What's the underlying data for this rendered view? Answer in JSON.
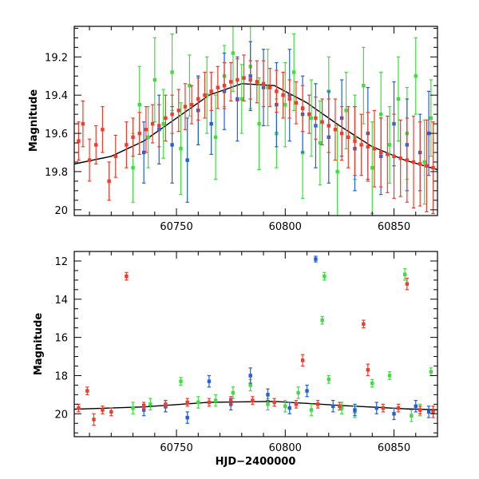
{
  "chart_data": [
    {
      "type": "scatter",
      "panel": "top",
      "title": "",
      "xlabel": "",
      "ylabel": "Magnitude",
      "xlim": [
        60703,
        60870
      ],
      "ylim": [
        20.03,
        19.04
      ],
      "y_inverted": true,
      "xticks": [
        60750,
        60800,
        60850
      ],
      "yticks": [
        19.2,
        19.4,
        19.6,
        19.8,
        20
      ],
      "ytick_labels": [
        "19.2",
        "19.4",
        "19.6",
        "19.8",
        "20"
      ],
      "grid": false,
      "legend": "none",
      "trend_curve": {
        "color": "#000000",
        "x": [
          60703,
          60720,
          60735,
          60750,
          60765,
          60780,
          60795,
          60810,
          60825,
          60840,
          60855,
          60870
        ],
        "y": [
          19.76,
          19.72,
          19.64,
          19.52,
          19.4,
          19.34,
          19.35,
          19.44,
          19.56,
          19.67,
          19.74,
          19.79
        ]
      },
      "series": [
        {
          "color": "#3dde3d",
          "x": [
            60730,
            60733,
            60737,
            60740,
            60744,
            60748,
            60752,
            60756,
            60760,
            60764,
            60768,
            60772,
            60776,
            60780,
            60784,
            60788,
            60792,
            60796,
            60800,
            60804,
            60808,
            60812,
            60816,
            60820,
            60824,
            60828,
            60832,
            60836,
            60840,
            60844,
            60848,
            60852,
            60856,
            60860,
            60864,
            60867
          ],
          "y": [
            19.78,
            19.45,
            19.62,
            19.32,
            19.55,
            19.28,
            19.68,
            19.35,
            19.48,
            19.4,
            19.62,
            19.3,
            19.18,
            19.42,
            19.25,
            19.55,
            19.36,
            19.6,
            19.45,
            19.28,
            19.7,
            19.52,
            19.65,
            19.38,
            19.8,
            19.48,
            19.62,
            19.35,
            19.78,
            19.5,
            19.66,
            19.42,
            19.6,
            19.3,
            19.75,
            19.52
          ],
          "err": [
            0.18,
            0.2,
            0.16,
            0.22,
            0.18,
            0.2,
            0.24,
            0.16,
            0.18,
            0.2,
            0.22,
            0.16,
            0.2,
            0.18,
            0.22,
            0.24,
            0.2,
            0.18,
            0.22,
            0.2,
            0.24,
            0.2,
            0.22,
            0.18,
            0.24,
            0.2,
            0.22,
            0.2,
            0.24,
            0.22,
            0.2,
            0.22,
            0.24,
            0.2,
            0.22,
            0.2
          ]
        },
        {
          "color": "#1f5fe0",
          "x": [
            60735,
            60742,
            60748,
            60755,
            60760,
            60766,
            60772,
            60778,
            60784,
            60790,
            60796,
            60802,
            60808,
            60814,
            60820,
            60826,
            60832,
            60838,
            60844,
            60850,
            60856,
            60862,
            60866
          ],
          "y": [
            19.7,
            19.58,
            19.66,
            19.74,
            19.48,
            19.55,
            19.38,
            19.42,
            19.3,
            19.36,
            19.45,
            19.4,
            19.5,
            19.56,
            19.62,
            19.52,
            19.68,
            19.6,
            19.72,
            19.55,
            19.66,
            19.7,
            19.6
          ],
          "err": [
            0.16,
            0.18,
            0.2,
            0.22,
            0.18,
            0.16,
            0.2,
            0.22,
            0.18,
            0.2,
            0.22,
            0.24,
            0.2,
            0.22,
            0.24,
            0.2,
            0.22,
            0.24,
            0.2,
            0.22,
            0.24,
            0.2,
            0.22
          ]
        },
        {
          "color": "#f23b2a",
          "x": [
            60705,
            60707,
            60710,
            60713,
            60716,
            60719,
            60722,
            60727,
            60730,
            60733,
            60736,
            60739,
            60742,
            60745,
            60748,
            60751,
            60754,
            60757,
            60760,
            60763,
            60766,
            60769,
            60772,
            60775,
            60778,
            60781,
            60784,
            60787,
            60790,
            60793,
            60796,
            60799,
            60802,
            60805,
            60808,
            60811,
            60814,
            60817,
            60820,
            60823,
            60826,
            60829,
            60832,
            60835,
            60838,
            60841,
            60844,
            60847,
            60850,
            60853,
            60856,
            60859,
            60862,
            60865,
            60868
          ],
          "y": [
            19.64,
            19.55,
            19.74,
            19.66,
            19.58,
            19.85,
            19.72,
            19.66,
            19.62,
            19.6,
            19.58,
            19.55,
            19.56,
            19.52,
            19.5,
            19.48,
            19.46,
            19.45,
            19.42,
            19.4,
            19.38,
            19.36,
            19.35,
            19.33,
            19.32,
            19.31,
            19.32,
            19.33,
            19.34,
            19.36,
            19.38,
            19.4,
            19.42,
            19.44,
            19.47,
            19.5,
            19.52,
            19.54,
            19.56,
            19.58,
            19.6,
            19.62,
            19.64,
            19.66,
            19.67,
            19.68,
            19.7,
            19.71,
            19.72,
            19.73,
            19.74,
            19.75,
            19.76,
            19.77,
            19.78
          ],
          "err": [
            0.1,
            0.12,
            0.11,
            0.1,
            0.12,
            0.1,
            0.11,
            0.12,
            0.1,
            0.11,
            0.12,
            0.1,
            0.11,
            0.12,
            0.1,
            0.11,
            0.12,
            0.1,
            0.11,
            0.12,
            0.1,
            0.11,
            0.12,
            0.1,
            0.11,
            0.12,
            0.1,
            0.11,
            0.12,
            0.1,
            0.11,
            0.12,
            0.1,
            0.11,
            0.12,
            0.1,
            0.11,
            0.12,
            0.14,
            0.16,
            0.14,
            0.16,
            0.18,
            0.16,
            0.18,
            0.2,
            0.18,
            0.2,
            0.22,
            0.2,
            0.22,
            0.24,
            0.22,
            0.24,
            0.24
          ]
        }
      ]
    },
    {
      "type": "scatter",
      "panel": "bottom",
      "title": "",
      "xlabel": "HJD−2400000",
      "ylabel": "Magnitude",
      "xlim": [
        60703,
        60870
      ],
      "ylim": [
        21.2,
        11.5
      ],
      "y_inverted": true,
      "xticks": [
        60750,
        60800,
        60850
      ],
      "yticks": [
        12,
        14,
        16,
        18,
        20
      ],
      "ytick_labels": [
        "12",
        "14",
        "16",
        "18",
        "20"
      ],
      "grid": false,
      "legend": "none",
      "trend_curve": {
        "color": "#000000",
        "x": [
          60703,
          60735,
          60765,
          60795,
          60825,
          60855,
          60870
        ],
        "y": [
          19.76,
          19.64,
          19.4,
          19.35,
          19.56,
          19.74,
          19.79
        ]
      },
      "series": [
        {
          "color": "#3dde3d",
          "x": [
            60730,
            60738,
            60745,
            60752,
            60760,
            60768,
            60776,
            60784,
            60792,
            60800,
            60806,
            60812,
            60817,
            60818,
            60820,
            60826,
            60832,
            60840,
            60848,
            60855,
            60858,
            60862,
            60867
          ],
          "y": [
            19.7,
            19.5,
            19.6,
            18.3,
            19.4,
            19.3,
            18.9,
            18.5,
            19.5,
            19.6,
            18.9,
            19.8,
            15.1,
            12.8,
            18.2,
            19.7,
            19.9,
            18.4,
            18.0,
            12.7,
            20.1,
            19.8,
            17.8
          ],
          "err": [
            0.3,
            0.3,
            0.3,
            0.2,
            0.3,
            0.3,
            0.3,
            0.3,
            0.3,
            0.3,
            0.3,
            0.3,
            0.2,
            0.2,
            0.2,
            0.3,
            0.3,
            0.2,
            0.2,
            0.3,
            0.3,
            0.3,
            0.2
          ]
        },
        {
          "color": "#1f5fe0",
          "x": [
            60735,
            60745,
            60755,
            60765,
            60775,
            60784,
            60792,
            60802,
            60810,
            60814,
            60822,
            60832,
            60842,
            60850,
            60860,
            60866
          ],
          "y": [
            19.8,
            19.6,
            20.2,
            18.3,
            19.5,
            18.0,
            19.0,
            19.7,
            18.8,
            11.9,
            19.6,
            19.8,
            19.7,
            20.0,
            19.6,
            19.9
          ],
          "err": [
            0.3,
            0.3,
            0.3,
            0.3,
            0.3,
            0.4,
            0.3,
            0.3,
            0.3,
            0.15,
            0.3,
            0.3,
            0.3,
            0.3,
            0.3,
            0.3
          ]
        },
        {
          "color": "#f23b2a",
          "x": [
            60705,
            60709,
            60712,
            60716,
            60720,
            60727,
            60735,
            60745,
            60755,
            60765,
            60775,
            60785,
            60795,
            60805,
            60808,
            60815,
            60825,
            60836,
            60838,
            60845,
            60852,
            60856,
            60862,
            60868
          ],
          "y": [
            19.7,
            18.8,
            20.3,
            19.8,
            19.9,
            12.8,
            19.6,
            19.5,
            19.4,
            19.4,
            19.3,
            19.3,
            19.4,
            19.5,
            17.2,
            19.5,
            19.6,
            15.3,
            17.7,
            19.7,
            19.7,
            13.2,
            19.8,
            19.9
          ],
          "err": [
            0.2,
            0.2,
            0.3,
            0.2,
            0.2,
            0.2,
            0.2,
            0.2,
            0.2,
            0.2,
            0.2,
            0.2,
            0.2,
            0.2,
            0.3,
            0.2,
            0.2,
            0.2,
            0.3,
            0.2,
            0.2,
            0.3,
            0.2,
            0.3
          ]
        }
      ]
    }
  ]
}
